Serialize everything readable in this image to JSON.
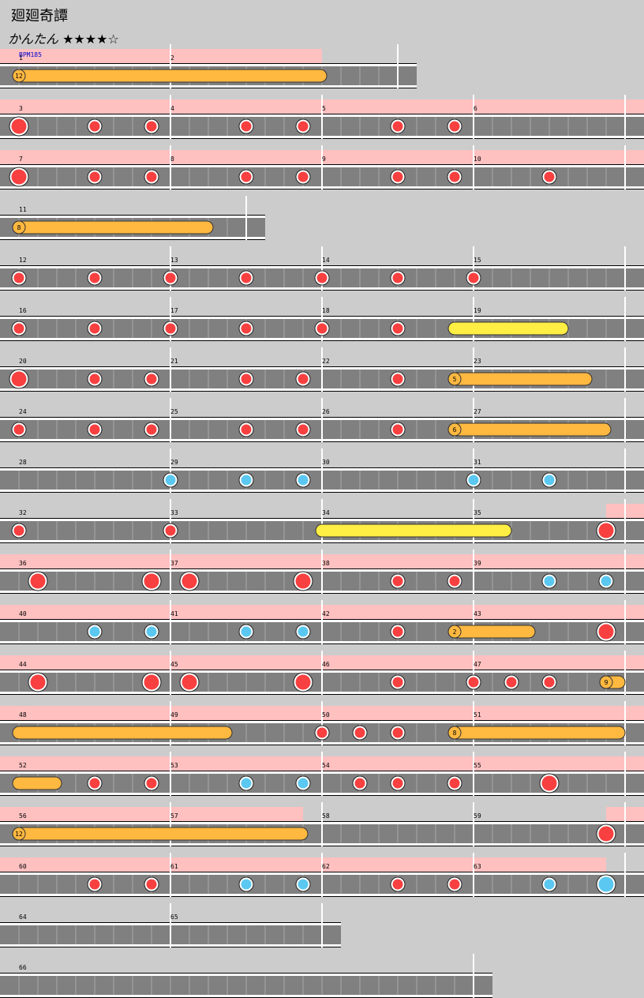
{
  "header": {
    "title": "廻廻奇譚",
    "difficulty": "かんたん ★★★★☆"
  },
  "rows": [
    {
      "measures": [
        {
          "number": 1,
          "length": 8
        },
        {
          "number": 2,
          "length": 12
        }
      ],
      "bpm": "BPM185",
      "gogo": [
        [
          0,
          16
        ]
      ],
      "notes": [],
      "rolls": [
        {
          "type": "balloon",
          "count": 12,
          "start": 0,
          "end": 16.25
        }
      ]
    },
    {
      "measures": [
        {
          "number": 3,
          "length": 8
        },
        {
          "number": 4,
          "length": 8
        },
        {
          "number": 5,
          "length": 8
        },
        {
          "number": 6,
          "length": 8
        }
      ],
      "gogo": [
        [
          0,
          32
        ]
      ],
      "notes": [
        {
          "type": "big-don",
          "at": 0
        },
        {
          "type": "don",
          "at": 4
        },
        {
          "type": "don",
          "at": 7
        },
        {
          "type": "don",
          "at": 12
        },
        {
          "type": "don",
          "at": 15
        },
        {
          "type": "don",
          "at": 20
        },
        {
          "type": "don",
          "at": 23
        }
      ],
      "rolls": []
    },
    {
      "measures": [
        {
          "number": 7,
          "length": 8
        },
        {
          "number": 8,
          "length": 8
        },
        {
          "number": 9,
          "length": 8
        },
        {
          "number": 10,
          "length": 8
        }
      ],
      "gogo": [
        [
          0,
          32
        ]
      ],
      "notes": [
        {
          "type": "big-don",
          "at": 0
        },
        {
          "type": "don",
          "at": 4
        },
        {
          "type": "don",
          "at": 7
        },
        {
          "type": "don",
          "at": 12
        },
        {
          "type": "don",
          "at": 15
        },
        {
          "type": "don",
          "at": 20
        },
        {
          "type": "don",
          "at": 23
        },
        {
          "type": "don",
          "at": 28
        }
      ],
      "rolls": []
    },
    {
      "measures": [
        {
          "number": 11,
          "length": 12
        }
      ],
      "gogo": [],
      "notes": [],
      "rolls": [
        {
          "type": "balloon",
          "count": 8,
          "start": 0,
          "end": 10.25
        }
      ]
    },
    {
      "measures": [
        {
          "number": 12,
          "length": 8
        },
        {
          "number": 13,
          "length": 8
        },
        {
          "number": 14,
          "length": 8
        },
        {
          "number": 15,
          "length": 8
        }
      ],
      "gogo": [],
      "notes": [
        {
          "type": "don",
          "at": 0
        },
        {
          "type": "don",
          "at": 4
        },
        {
          "type": "don",
          "at": 8
        },
        {
          "type": "don",
          "at": 12
        },
        {
          "type": "don",
          "at": 16
        },
        {
          "type": "don",
          "at": 20
        },
        {
          "type": "don",
          "at": 24
        }
      ],
      "rolls": []
    },
    {
      "measures": [
        {
          "number": 16,
          "length": 8
        },
        {
          "number": 17,
          "length": 8
        },
        {
          "number": 18,
          "length": 8
        },
        {
          "number": 19,
          "length": 8
        }
      ],
      "gogo": [],
      "notes": [
        {
          "type": "don",
          "at": 0
        },
        {
          "type": "don",
          "at": 4
        },
        {
          "type": "don",
          "at": 8
        },
        {
          "type": "don",
          "at": 12
        },
        {
          "type": "don",
          "at": 16
        },
        {
          "type": "don",
          "at": 20
        }
      ],
      "rolls": [
        {
          "type": "roll",
          "start": 23,
          "end": 29
        }
      ]
    },
    {
      "measures": [
        {
          "number": 20,
          "length": 8
        },
        {
          "number": 21,
          "length": 8
        },
        {
          "number": 22,
          "length": 8
        },
        {
          "number": 23,
          "length": 8
        }
      ],
      "gogo": [],
      "notes": [
        {
          "type": "big-don",
          "at": 0
        },
        {
          "type": "don",
          "at": 4
        },
        {
          "type": "don",
          "at": 7
        },
        {
          "type": "don",
          "at": 12
        },
        {
          "type": "don",
          "at": 15
        },
        {
          "type": "don",
          "at": 20
        }
      ],
      "rolls": [
        {
          "type": "balloon",
          "count": 5,
          "start": 23,
          "end": 30.25
        }
      ]
    },
    {
      "measures": [
        {
          "number": 24,
          "length": 8
        },
        {
          "number": 25,
          "length": 8
        },
        {
          "number": 26,
          "length": 8
        },
        {
          "number": 27,
          "length": 8
        }
      ],
      "gogo": [],
      "notes": [
        {
          "type": "don",
          "at": 0
        },
        {
          "type": "don",
          "at": 4
        },
        {
          "type": "don",
          "at": 7
        },
        {
          "type": "don",
          "at": 12
        },
        {
          "type": "don",
          "at": 15
        },
        {
          "type": "don",
          "at": 20
        }
      ],
      "rolls": [
        {
          "type": "balloon",
          "count": 6,
          "start": 23,
          "end": 31.25
        }
      ]
    },
    {
      "measures": [
        {
          "number": 28,
          "length": 8
        },
        {
          "number": 29,
          "length": 8
        },
        {
          "number": 30,
          "length": 8
        },
        {
          "number": 31,
          "length": 8
        }
      ],
      "gogo": [],
      "notes": [
        {
          "type": "ka",
          "at": 8
        },
        {
          "type": "ka",
          "at": 12
        },
        {
          "type": "ka",
          "at": 15
        },
        {
          "type": "ka",
          "at": 24
        },
        {
          "type": "ka",
          "at": 28
        }
      ],
      "rolls": []
    },
    {
      "measures": [
        {
          "number": 32,
          "length": 8
        },
        {
          "number": 33,
          "length": 8
        },
        {
          "number": 34,
          "length": 8
        },
        {
          "number": 35,
          "length": 8
        }
      ],
      "gogo": [
        [
          31,
          32
        ]
      ],
      "notes": [
        {
          "type": "don",
          "at": 0
        },
        {
          "type": "don",
          "at": 8
        },
        {
          "type": "big-don",
          "at": 31
        }
      ],
      "rolls": [
        {
          "type": "roll",
          "start": 16,
          "end": 26
        }
      ]
    },
    {
      "measures": [
        {
          "number": 36,
          "length": 8
        },
        {
          "number": 37,
          "length": 8
        },
        {
          "number": 38,
          "length": 8
        },
        {
          "number": 39,
          "length": 8
        }
      ],
      "gogo": [
        [
          0,
          32
        ]
      ],
      "notes": [
        {
          "type": "big-don",
          "at": 1
        },
        {
          "type": "big-don",
          "at": 7
        },
        {
          "type": "big-don",
          "at": 9
        },
        {
          "type": "big-don",
          "at": 15
        },
        {
          "type": "don",
          "at": 20
        },
        {
          "type": "don",
          "at": 23
        },
        {
          "type": "ka",
          "at": 28
        },
        {
          "type": "ka",
          "at": 31
        }
      ],
      "rolls": []
    },
    {
      "measures": [
        {
          "number": 40,
          "length": 8
        },
        {
          "number": 41,
          "length": 8
        },
        {
          "number": 42,
          "length": 8
        },
        {
          "number": 43,
          "length": 8
        }
      ],
      "gogo": [
        [
          0,
          32
        ]
      ],
      "notes": [
        {
          "type": "ka",
          "at": 4
        },
        {
          "type": "ka",
          "at": 7
        },
        {
          "type": "ka",
          "at": 12
        },
        {
          "type": "ka",
          "at": 15
        },
        {
          "type": "don",
          "at": 20
        },
        {
          "type": "big-don",
          "at": 31
        }
      ],
      "rolls": [
        {
          "type": "balloon",
          "count": 2,
          "start": 23,
          "end": 27.25
        }
      ]
    },
    {
      "measures": [
        {
          "number": 44,
          "length": 8
        },
        {
          "number": 45,
          "length": 8
        },
        {
          "number": 46,
          "length": 8
        },
        {
          "number": 47,
          "length": 8
        }
      ],
      "gogo": [
        [
          0,
          32
        ]
      ],
      "notes": [
        {
          "type": "big-don",
          "at": 1
        },
        {
          "type": "big-don",
          "at": 7
        },
        {
          "type": "big-don",
          "at": 9
        },
        {
          "type": "big-don",
          "at": 15
        },
        {
          "type": "don",
          "at": 20
        },
        {
          "type": "don",
          "at": 24
        },
        {
          "type": "don",
          "at": 26
        },
        {
          "type": "don",
          "at": 28
        }
      ],
      "rolls": [
        {
          "type": "balloon",
          "count": 9,
          "start": 31,
          "end": 32
        }
      ]
    },
    {
      "measures": [
        {
          "number": 48,
          "length": 8
        },
        {
          "number": 49,
          "length": 8
        },
        {
          "number": 50,
          "length": 8
        },
        {
          "number": 51,
          "length": 8
        }
      ],
      "gogo": [
        [
          0,
          32
        ]
      ],
      "notes": [
        {
          "type": "don",
          "at": 16
        },
        {
          "type": "don",
          "at": 18
        },
        {
          "type": "don",
          "at": 20
        }
      ],
      "rolls": [
        {
          "type": "balloon",
          "start": 0,
          "end": 11.25
        },
        {
          "type": "balloon",
          "count": 8,
          "start": 23,
          "end": 32
        }
      ]
    },
    {
      "measures": [
        {
          "number": 52,
          "length": 8
        },
        {
          "number": 53,
          "length": 8
        },
        {
          "number": 54,
          "length": 8
        },
        {
          "number": 55,
          "length": 8
        }
      ],
      "gogo": [
        [
          0,
          32
        ]
      ],
      "notes": [
        {
          "type": "don",
          "at": 4
        },
        {
          "type": "don",
          "at": 7
        },
        {
          "type": "ka",
          "at": 12
        },
        {
          "type": "ka",
          "at": 15
        },
        {
          "type": "don",
          "at": 18
        },
        {
          "type": "don",
          "at": 20
        },
        {
          "type": "don",
          "at": 23
        },
        {
          "type": "big-don",
          "at": 28
        }
      ],
      "rolls": [
        {
          "type": "balloon",
          "start": 0,
          "end": 2.25
        }
      ]
    },
    {
      "measures": [
        {
          "number": 56,
          "length": 8
        },
        {
          "number": 57,
          "length": 8
        },
        {
          "number": 58,
          "length": 8
        },
        {
          "number": 59,
          "length": 8
        }
      ],
      "gogo": [
        [
          0,
          15
        ],
        [
          31,
          32
        ]
      ],
      "notes": [
        {
          "type": "big-don",
          "at": 31
        }
      ],
      "rolls": [
        {
          "type": "balloon",
          "count": 12,
          "start": 0,
          "end": 15.25
        }
      ]
    },
    {
      "measures": [
        {
          "number": 60,
          "length": 8
        },
        {
          "number": 61,
          "length": 8
        },
        {
          "number": 62,
          "length": 8
        },
        {
          "number": 63,
          "length": 8
        }
      ],
      "gogo": [
        [
          0,
          31
        ]
      ],
      "notes": [
        {
          "type": "don",
          "at": 4
        },
        {
          "type": "don",
          "at": 7
        },
        {
          "type": "ka",
          "at": 12
        },
        {
          "type": "ka",
          "at": 15
        },
        {
          "type": "don",
          "at": 20
        },
        {
          "type": "don",
          "at": 23
        },
        {
          "type": "ka",
          "at": 28
        },
        {
          "type": "big-ka",
          "at": 31
        }
      ],
      "rolls": []
    },
    {
      "measures": [
        {
          "number": 64,
          "length": 8
        },
        {
          "number": 65,
          "length": 8
        }
      ],
      "gogo": [],
      "notes": [],
      "rolls": []
    },
    {
      "measures": [
        {
          "number": 66,
          "length": 24
        }
      ],
      "gogo": [],
      "notes": [],
      "rolls": []
    }
  ]
}
